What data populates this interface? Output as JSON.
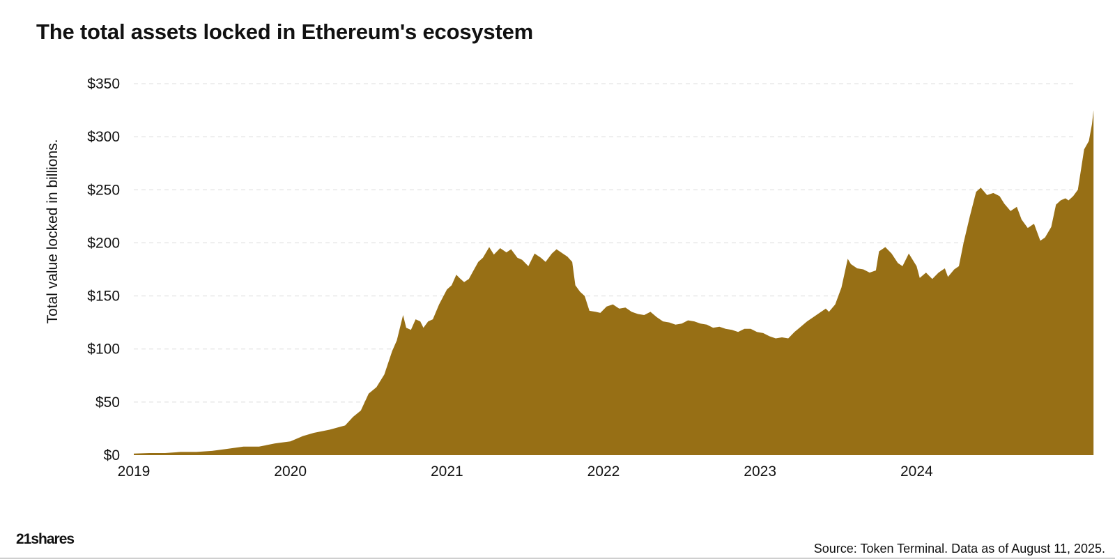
{
  "title": "The total assets locked in Ethereum's ecosystem",
  "source": "Source: Token Terminal. Data as of August 11, 2025.",
  "logo_text": "21shares",
  "chart_data": {
    "type": "area",
    "title": "The total assets locked in Ethereum's ecosystem",
    "xlabel": "",
    "ylabel": "Total value locked in billions.",
    "ylim": [
      0,
      350
    ],
    "xlim": [
      2019.0,
      2025.0
    ],
    "x_ticks": [
      {
        "value": 2019,
        "label": "2019"
      },
      {
        "value": 2020,
        "label": "2020"
      },
      {
        "value": 2021,
        "label": "2021"
      },
      {
        "value": 2022,
        "label": "2022"
      },
      {
        "value": 2023,
        "label": "2023"
      },
      {
        "value": 2024,
        "label": "2024"
      }
    ],
    "y_ticks": [
      {
        "value": 0,
        "label": "$0"
      },
      {
        "value": 50,
        "label": "$50"
      },
      {
        "value": 100,
        "label": "$100"
      },
      {
        "value": 150,
        "label": "$150"
      },
      {
        "value": 200,
        "label": "$200"
      },
      {
        "value": 250,
        "label": "$250"
      },
      {
        "value": 300,
        "label": "$300"
      },
      {
        "value": 350,
        "label": "$350"
      }
    ],
    "grid": true,
    "legend": "none",
    "color": "#976f15",
    "series": [
      {
        "points": [
          [
            2019.0,
            1.5
          ],
          [
            2019.1,
            2
          ],
          [
            2019.2,
            2
          ],
          [
            2019.3,
            3
          ],
          [
            2019.4,
            3
          ],
          [
            2019.5,
            4
          ],
          [
            2019.6,
            6
          ],
          [
            2019.7,
            8
          ],
          [
            2019.8,
            8
          ],
          [
            2019.9,
            11
          ],
          [
            2020.0,
            13
          ],
          [
            2020.08,
            18
          ],
          [
            2020.15,
            21
          ],
          [
            2020.25,
            24
          ],
          [
            2020.35,
            28
          ],
          [
            2020.4,
            36
          ],
          [
            2020.45,
            42
          ],
          [
            2020.5,
            58
          ],
          [
            2020.55,
            64
          ],
          [
            2020.6,
            76
          ],
          [
            2020.65,
            98
          ],
          [
            2020.68,
            108
          ],
          [
            2020.72,
            132
          ],
          [
            2020.74,
            120
          ],
          [
            2020.77,
            118
          ],
          [
            2020.8,
            128
          ],
          [
            2020.83,
            126
          ],
          [
            2020.85,
            120
          ],
          [
            2020.88,
            126
          ],
          [
            2020.91,
            128
          ],
          [
            2020.95,
            142
          ],
          [
            2021.0,
            156
          ],
          [
            2021.03,
            160
          ],
          [
            2021.06,
            170
          ],
          [
            2021.08,
            167
          ],
          [
            2021.11,
            163
          ],
          [
            2021.14,
            166
          ],
          [
            2021.17,
            174
          ],
          [
            2021.2,
            182
          ],
          [
            2021.23,
            186
          ],
          [
            2021.27,
            196
          ],
          [
            2021.3,
            189
          ],
          [
            2021.34,
            195
          ],
          [
            2021.38,
            191
          ],
          [
            2021.41,
            194
          ],
          [
            2021.45,
            186
          ],
          [
            2021.48,
            184
          ],
          [
            2021.52,
            178
          ],
          [
            2021.56,
            190
          ],
          [
            2021.6,
            186
          ],
          [
            2021.63,
            182
          ],
          [
            2021.67,
            190
          ],
          [
            2021.7,
            194
          ],
          [
            2021.74,
            190
          ],
          [
            2021.77,
            187
          ],
          [
            2021.8,
            182
          ],
          [
            2021.82,
            160
          ],
          [
            2021.85,
            154
          ],
          [
            2021.88,
            150
          ],
          [
            2021.91,
            136
          ],
          [
            2021.95,
            135
          ],
          [
            2021.98,
            134
          ],
          [
            2022.02,
            140
          ],
          [
            2022.06,
            142
          ],
          [
            2022.1,
            138
          ],
          [
            2022.14,
            139
          ],
          [
            2022.18,
            135
          ],
          [
            2022.22,
            133
          ],
          [
            2022.26,
            132
          ],
          [
            2022.3,
            135
          ],
          [
            2022.34,
            130
          ],
          [
            2022.38,
            126
          ],
          [
            2022.42,
            125
          ],
          [
            2022.46,
            123
          ],
          [
            2022.5,
            124
          ],
          [
            2022.54,
            127
          ],
          [
            2022.58,
            126
          ],
          [
            2022.62,
            124
          ],
          [
            2022.66,
            123
          ],
          [
            2022.7,
            120
          ],
          [
            2022.74,
            121
          ],
          [
            2022.78,
            119
          ],
          [
            2022.82,
            118
          ],
          [
            2022.86,
            116
          ],
          [
            2022.9,
            119
          ],
          [
            2022.94,
            119
          ],
          [
            2022.98,
            116
          ],
          [
            2023.02,
            115
          ],
          [
            2023.06,
            112
          ],
          [
            2023.1,
            110
          ],
          [
            2023.14,
            111
          ],
          [
            2023.18,
            110
          ],
          [
            2023.22,
            116
          ],
          [
            2023.26,
            121
          ],
          [
            2023.3,
            126
          ],
          [
            2023.34,
            130
          ],
          [
            2023.38,
            134
          ],
          [
            2023.42,
            138
          ],
          [
            2023.44,
            135
          ],
          [
            2023.48,
            142
          ],
          [
            2023.52,
            158
          ],
          [
            2023.56,
            185
          ],
          [
            2023.58,
            180
          ],
          [
            2023.62,
            176
          ],
          [
            2023.66,
            175
          ],
          [
            2023.7,
            172
          ],
          [
            2023.74,
            174
          ],
          [
            2023.76,
            192
          ],
          [
            2023.8,
            196
          ],
          [
            2023.84,
            190
          ],
          [
            2023.88,
            181
          ],
          [
            2023.91,
            178
          ],
          [
            2023.95,
            190
          ],
          [
            2024.0,
            178
          ],
          [
            2024.02,
            167
          ],
          [
            2024.06,
            172
          ],
          [
            2024.1,
            166
          ],
          [
            2024.14,
            172
          ],
          [
            2024.18,
            176
          ],
          [
            2024.2,
            168
          ],
          [
            2024.24,
            175
          ],
          [
            2024.27,
            178
          ],
          [
            2024.3,
            200
          ],
          [
            2024.34,
            225
          ],
          [
            2024.38,
            248
          ],
          [
            2024.41,
            252
          ],
          [
            2024.45,
            245
          ],
          [
            2024.49,
            247
          ],
          [
            2024.53,
            244
          ],
          [
            2024.56,
            237
          ],
          [
            2024.6,
            230
          ],
          [
            2024.64,
            234
          ],
          [
            2024.67,
            222
          ],
          [
            2024.71,
            214
          ],
          [
            2024.75,
            218
          ],
          [
            2024.79,
            202
          ],
          [
            2024.82,
            205
          ],
          [
            2024.86,
            215
          ],
          [
            2024.89,
            236
          ],
          [
            2024.92,
            240
          ],
          [
            2024.95,
            242
          ],
          [
            2024.97,
            240
          ],
          [
            2025.0,
            244
          ],
          [
            2025.03,
            250
          ],
          [
            2025.07,
            288
          ],
          [
            2025.1,
            296
          ],
          [
            2025.12,
            312
          ],
          [
            2025.13,
            325
          ]
        ]
      }
    ]
  }
}
